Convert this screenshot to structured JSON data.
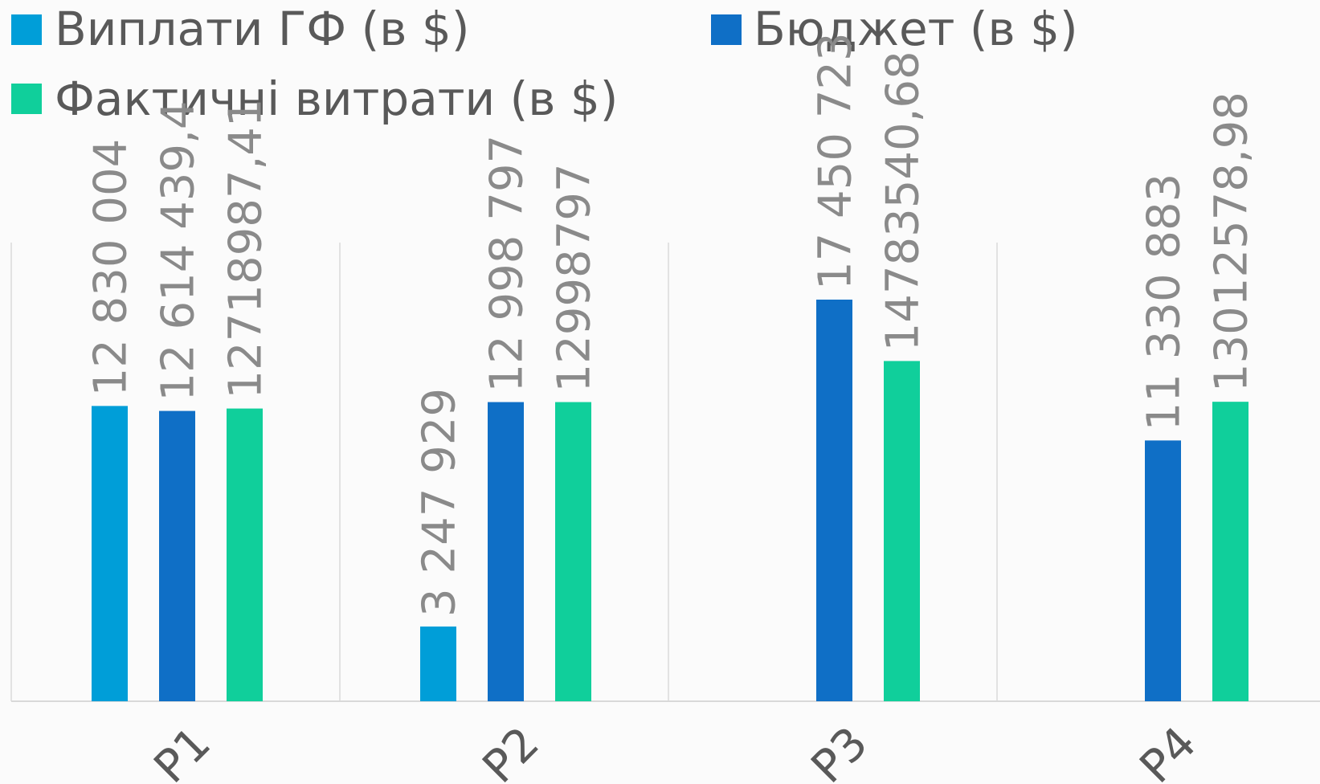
{
  "chart_data": {
    "type": "bar",
    "categories": [
      "P1",
      "P2",
      "P3",
      "P4"
    ],
    "series": [
      {
        "name": "Виплати ГФ (в $)",
        "color": "#009ed8",
        "values": [
          12830004,
          3247929,
          null,
          null
        ],
        "labels": [
          "12 830 004",
          "3 247 929",
          "",
          ""
        ]
      },
      {
        "name": "Бюджет (в $)",
        "color": "#0f6fc6",
        "values": [
          12614439.4,
          12998797,
          17450723,
          11330883
        ],
        "labels": [
          "12 614 439,4",
          "12 998 797",
          "17 450 723",
          "11 330 883"
        ]
      },
      {
        "name": "Фактичні витрати (в $)",
        "color": "#10cf9b",
        "values": [
          12718987.41,
          12998797,
          14783540.68,
          13012578.98
        ],
        "labels": [
          "12718987,41",
          "12998797",
          "14783540,68",
          "13012578,98"
        ]
      }
    ],
    "ylim": [
      0,
      20000000
    ],
    "grid": "vertical",
    "legend_position": "top",
    "title": "",
    "xlabel": "",
    "ylabel": ""
  }
}
